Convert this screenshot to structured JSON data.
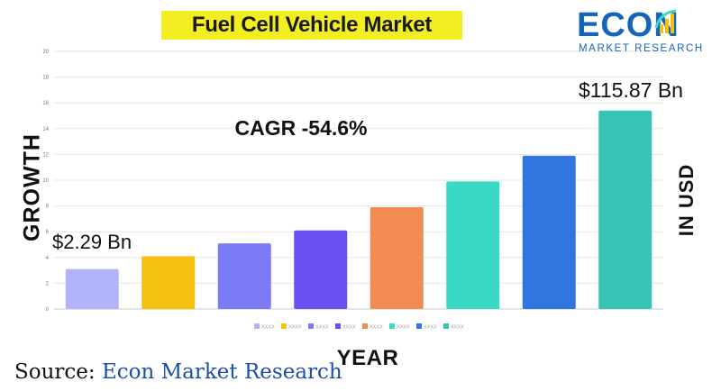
{
  "title": "Fuel Cell Vehicle Market",
  "logo": {
    "main": "ECON",
    "sub": "MARKET RESEARCH",
    "color": "#1566b8"
  },
  "source": {
    "label": "Source:",
    "value": "Econ Market Research"
  },
  "chart_data": {
    "type": "bar",
    "ylabel": "GROWTH",
    "ylabel_right": "IN USD",
    "xlabel": "YEAR",
    "ylim": [
      0,
      20
    ],
    "yticks": [
      "0",
      "2",
      "4",
      "6",
      "8",
      "10",
      "12",
      "14",
      "16",
      "18",
      "20"
    ],
    "grid": true,
    "legend_position": "bottom",
    "annotations": {
      "cagr": "CAGR -54.6%",
      "start_value": "$2.29 Bn",
      "end_value": "$115.87 Bn"
    },
    "series": [
      {
        "name": "XXXX",
        "value": 3.1,
        "color": "#b3b3f9"
      },
      {
        "name": "XXXX",
        "value": 4.1,
        "color": "#f4c10f"
      },
      {
        "name": "XXXX",
        "value": 5.1,
        "color": "#7b7bf6"
      },
      {
        "name": "XXXX",
        "value": 6.1,
        "color": "#6a4ff2"
      },
      {
        "name": "XXXX",
        "value": 7.9,
        "color": "#f28b52"
      },
      {
        "name": "XXXX",
        "value": 9.9,
        "color": "#3ad9c6"
      },
      {
        "name": "XXXX",
        "value": 11.9,
        "color": "#3176e0"
      },
      {
        "name": "XXXX",
        "value": 15.4,
        "color": "#37c4b6"
      }
    ]
  }
}
